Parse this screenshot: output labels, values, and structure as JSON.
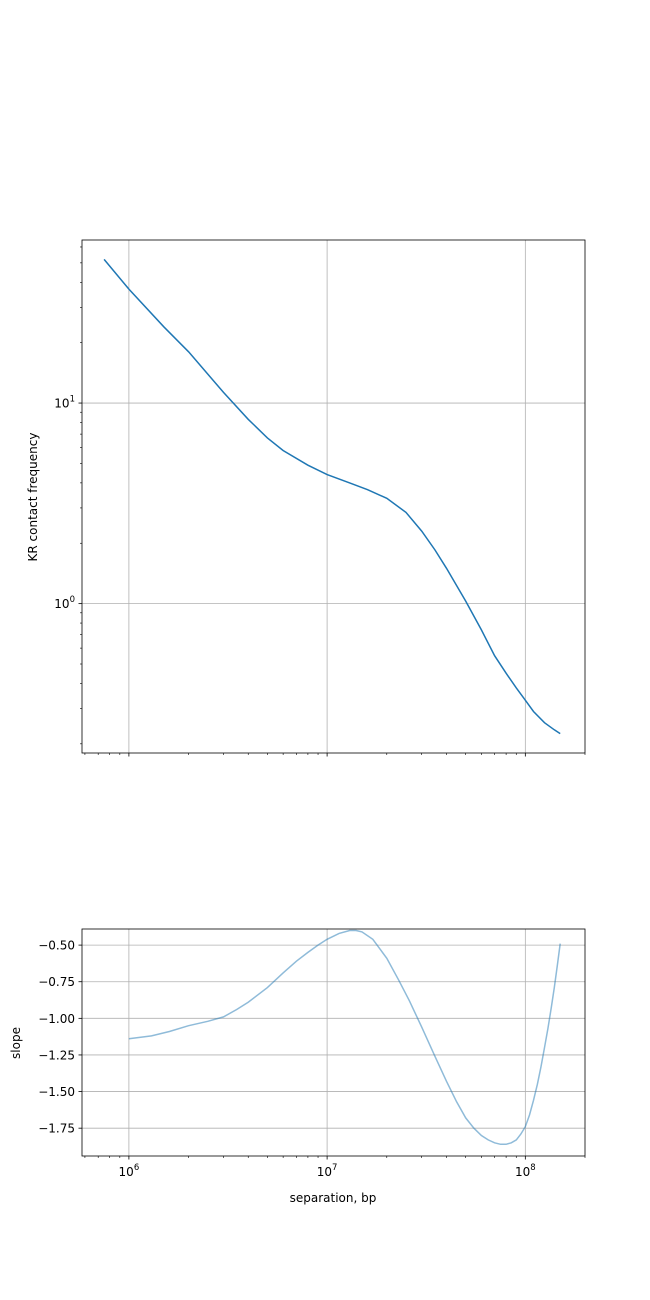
{
  "chart_data": [
    {
      "type": "line",
      "title": "",
      "xlabel": "",
      "ylabel": "KR contact frequency",
      "xscale": "log",
      "yscale": "log",
      "xlim": [
        580000,
        200000000
      ],
      "ylim": [
        0.18,
        65
      ],
      "grid": true,
      "x_ticks": [
        {
          "value": 1000000,
          "label": ""
        },
        {
          "value": 10000000,
          "label": ""
        },
        {
          "value": 100000000,
          "label": ""
        }
      ],
      "y_ticks": [
        {
          "value": 1,
          "base": "10",
          "exp": "0"
        },
        {
          "value": 10,
          "base": "10",
          "exp": "1"
        }
      ],
      "series": [
        {
          "color": "#1f77b4",
          "x": [
            750000,
            1000000,
            1500000,
            2000000,
            3000000,
            4000000,
            5000000,
            6000000,
            8000000,
            10000000,
            13000000,
            16000000,
            20000000,
            25000000,
            30000000,
            35000000,
            40000000,
            50000000,
            60000000,
            70000000,
            80000000,
            90000000,
            100000000,
            110000000,
            125000000,
            140000000,
            150000000
          ],
          "y": [
            52,
            37,
            24,
            18,
            11.3,
            8.3,
            6.7,
            5.8,
            4.9,
            4.4,
            4.0,
            3.7,
            3.35,
            2.85,
            2.3,
            1.85,
            1.5,
            1.03,
            0.74,
            0.55,
            0.45,
            0.38,
            0.33,
            0.29,
            0.255,
            0.235,
            0.225
          ]
        }
      ]
    },
    {
      "type": "line",
      "title": "",
      "xlabel": "separation, bp",
      "ylabel": "slope",
      "xscale": "log",
      "xlim": [
        580000,
        200000000
      ],
      "ylim": [
        -1.94,
        -0.39
      ],
      "grid": true,
      "x_ticks": [
        {
          "value": 1000000,
          "base": "10",
          "exp": "6"
        },
        {
          "value": 10000000,
          "base": "10",
          "exp": "7"
        },
        {
          "value": 100000000,
          "base": "10",
          "exp": "8"
        }
      ],
      "y_ticks": [
        {
          "value": -0.5,
          "label": "−0.50"
        },
        {
          "value": -0.75,
          "label": "−0.75"
        },
        {
          "value": -1.0,
          "label": "−1.00"
        },
        {
          "value": -1.25,
          "label": "−1.25"
        },
        {
          "value": -1.5,
          "label": "−1.50"
        },
        {
          "value": -1.75,
          "label": "−1.75"
        }
      ],
      "series": [
        {
          "color": "#1f77b4",
          "opacity": 0.5,
          "x": [
            1000000,
            1300000,
            1600000,
            2000000,
            2500000,
            3000000,
            3500000,
            4000000,
            5000000,
            6000000,
            7000000,
            8000000,
            9000000,
            10000000,
            11500000,
            13000000,
            14000000,
            15000000,
            17000000,
            20000000,
            23000000,
            26000000,
            30000000,
            35000000,
            40000000,
            45000000,
            50000000,
            55000000,
            60000000,
            65000000,
            70000000,
            75000000,
            80000000,
            85000000,
            90000000,
            95000000,
            100000000,
            105000000,
            110000000,
            115000000,
            120000000,
            125000000,
            130000000,
            135000000,
            140000000,
            145000000,
            150000000
          ],
          "y": [
            -1.14,
            -1.12,
            -1.09,
            -1.05,
            -1.02,
            -0.99,
            -0.94,
            -0.89,
            -0.79,
            -0.69,
            -0.61,
            -0.55,
            -0.5,
            -0.46,
            -0.42,
            -0.4,
            -0.4,
            -0.41,
            -0.46,
            -0.59,
            -0.74,
            -0.88,
            -1.06,
            -1.26,
            -1.43,
            -1.57,
            -1.68,
            -1.75,
            -1.8,
            -1.83,
            -1.85,
            -1.86,
            -1.86,
            -1.85,
            -1.83,
            -1.79,
            -1.74,
            -1.66,
            -1.56,
            -1.45,
            -1.33,
            -1.2,
            -1.07,
            -0.93,
            -0.79,
            -0.64,
            -0.49
          ]
        }
      ]
    }
  ]
}
